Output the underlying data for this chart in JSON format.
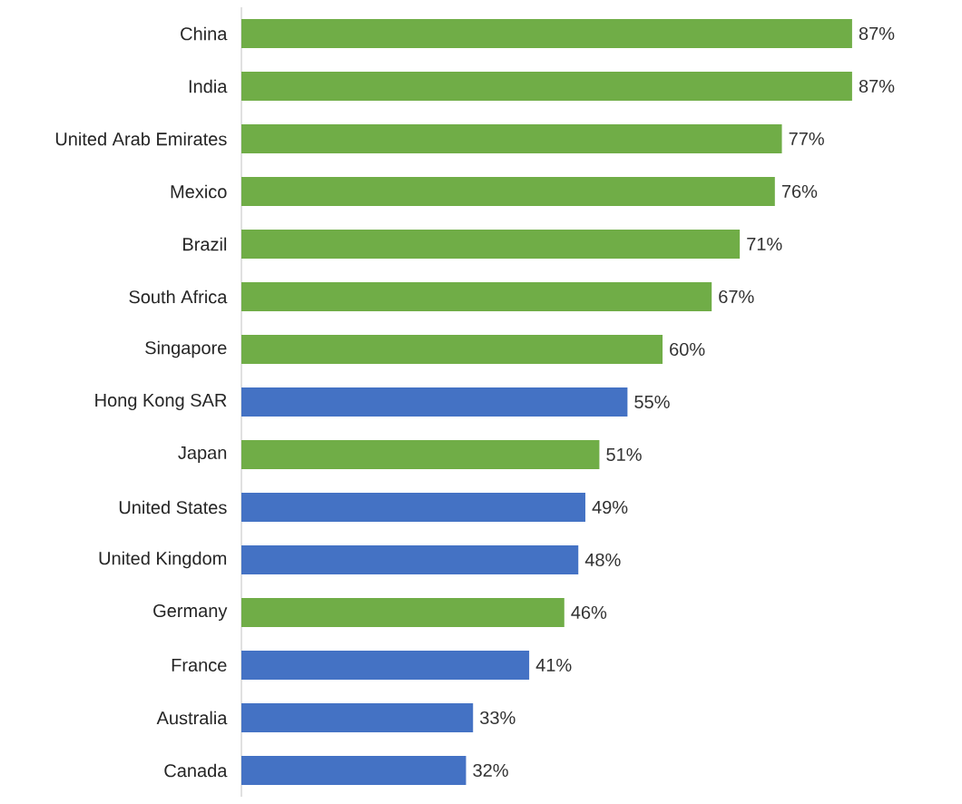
{
  "chart_data": {
    "type": "bar",
    "orientation": "horizontal",
    "data_labels": true,
    "categories": [
      "China",
      "India",
      "United Arab Emirates",
      "Mexico",
      "Brazil",
      "South Africa",
      "Singapore",
      "Hong Kong SAR",
      "Japan",
      "United States",
      "United Kingdom",
      "Germany",
      "France",
      "Australia",
      "Canada"
    ],
    "values": [
      87,
      87,
      77,
      76,
      71,
      67,
      60,
      55,
      51,
      49,
      48,
      46,
      41,
      33,
      32
    ],
    "value_labels": [
      "87%",
      "87%",
      "77%",
      "76%",
      "71%",
      "67%",
      "60%",
      "55%",
      "51%",
      "49%",
      "48%",
      "46%",
      "41%",
      "33%",
      "32%"
    ],
    "colors": [
      "#70ad47",
      "#70ad47",
      "#70ad47",
      "#70ad47",
      "#70ad47",
      "#70ad47",
      "#70ad47",
      "#4472c4",
      "#70ad47",
      "#4472c4",
      "#4472c4",
      "#70ad47",
      "#4472c4",
      "#4472c4",
      "#4472c4"
    ]
  }
}
